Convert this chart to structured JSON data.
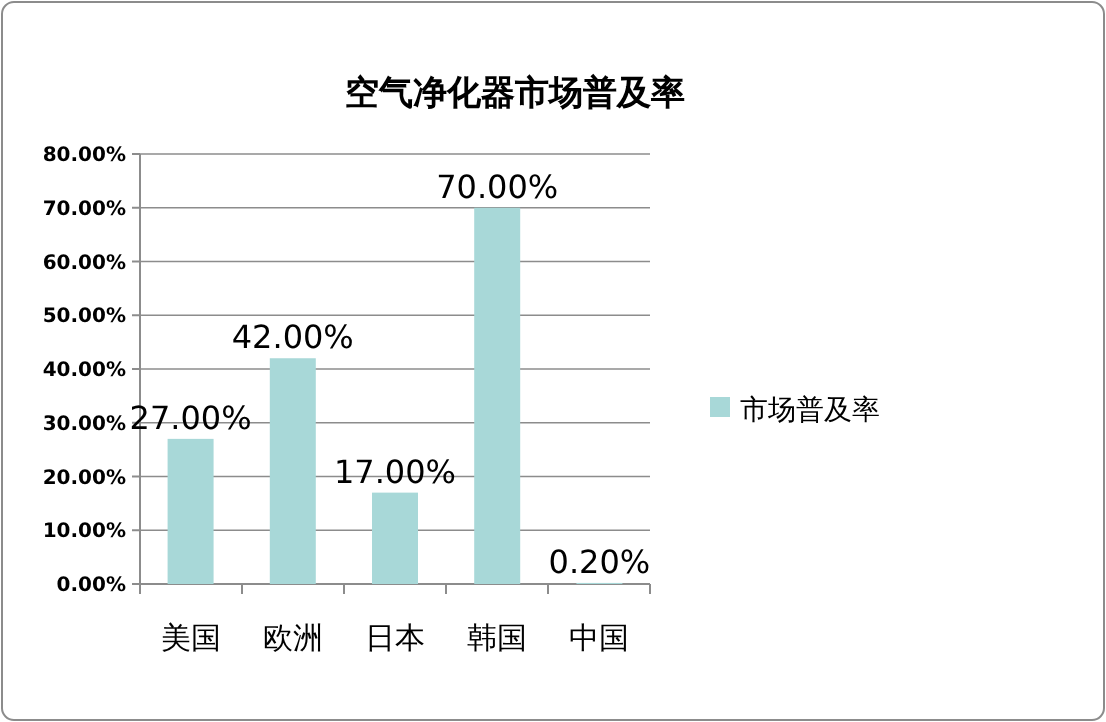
{
  "chart_data": {
    "type": "bar",
    "title": "空气净化器市场普及率",
    "categories": [
      "美国",
      "欧洲",
      "日本",
      "韩国",
      "中国"
    ],
    "series": [
      {
        "name": "市场普及率",
        "color": "#a8d8d8",
        "values": [
          27,
          42,
          17,
          70,
          0.2
        ],
        "value_labels": [
          "27.00%",
          "42.00%",
          "17.00%",
          "70.00%",
          "0.20%"
        ]
      }
    ],
    "ylim": [
      0,
      80
    ],
    "yticks": [
      {
        "value": 0,
        "label": "0.00%"
      },
      {
        "value": 10,
        "label": "10.00%"
      },
      {
        "value": 20,
        "label": "20.00%"
      },
      {
        "value": 30,
        "label": "30.00%"
      },
      {
        "value": 40,
        "label": "40.00%"
      },
      {
        "value": 50,
        "label": "50.00%"
      },
      {
        "value": 60,
        "label": "60.00%"
      },
      {
        "value": 70,
        "label": "70.00%"
      },
      {
        "value": 80,
        "label": "80.00%"
      }
    ],
    "grid": "y",
    "legend": "right"
  }
}
